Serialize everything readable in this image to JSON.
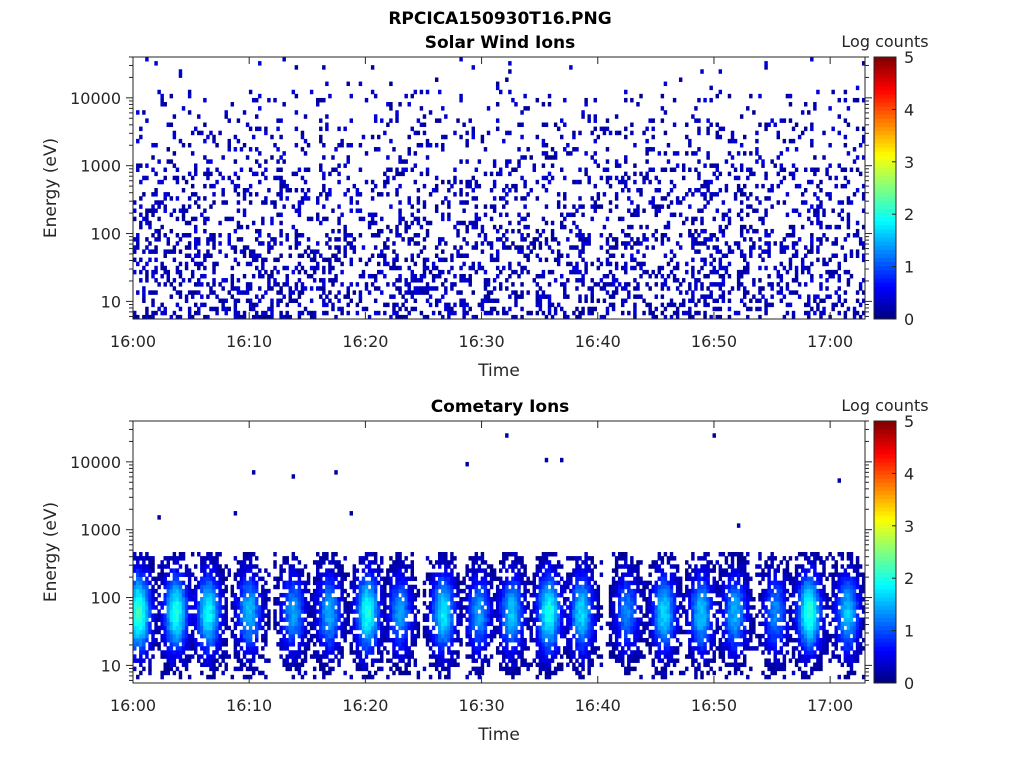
{
  "figure_title": "RPCICA150930T16.PNG",
  "chart_data": [
    {
      "type": "heatmap",
      "title": "Solar Wind Ions",
      "xlabel": "Time",
      "ylabel": "Energy (eV)",
      "yscale": "log",
      "ylim": [
        5.5,
        40000
      ],
      "y_ticks": [
        10,
        100,
        1000,
        10000
      ],
      "y_tick_labels": [
        "10",
        "100",
        "1000",
        "10000"
      ],
      "x_range_minutes": [
        0,
        63
      ],
      "x_ticks_minutes": [
        0,
        10,
        20,
        30,
        40,
        50,
        60
      ],
      "x_tick_labels": [
        "16:00",
        "16:10",
        "16:20",
        "16:30",
        "16:40",
        "16:50",
        "17:00"
      ],
      "colorbar": {
        "label": "Log counts",
        "min": 0,
        "max": 5,
        "ticks": [
          0,
          1,
          2,
          3,
          4,
          5
        ],
        "tick_labels": [
          "0",
          "1",
          "2",
          "3",
          "4",
          "5"
        ],
        "colormap": "jet"
      },
      "pattern": "sparse low counts (log counts ~0-0.5) scattered across all times from ~6 eV to ~30000 eV, densest below ~1000 eV",
      "grid": false
    },
    {
      "type": "heatmap",
      "title": "Cometary Ions",
      "xlabel": "Time",
      "ylabel": "Energy (eV)",
      "yscale": "log",
      "ylim": [
        5.5,
        40000
      ],
      "y_ticks": [
        10,
        100,
        1000,
        10000
      ],
      "y_tick_labels": [
        "10",
        "100",
        "1000",
        "10000"
      ],
      "x_range_minutes": [
        0,
        63
      ],
      "x_ticks_minutes": [
        0,
        10,
        20,
        30,
        40,
        50,
        60
      ],
      "x_tick_labels": [
        "16:00",
        "16:10",
        "16:20",
        "16:30",
        "16:40",
        "16:50",
        "17:00"
      ],
      "colorbar": {
        "label": "Log counts",
        "min": 0,
        "max": 5,
        "ticks": [
          0,
          1,
          2,
          3,
          4,
          5
        ],
        "tick_labels": [
          "0",
          "1",
          "2",
          "3",
          "4",
          "5"
        ],
        "colormap": "jet"
      },
      "bursts": [
        {
          "t_min": 0.5,
          "peak_log_counts": 2.2
        },
        {
          "t_min": 3.7,
          "peak_log_counts": 2.0
        },
        {
          "t_min": 6.5,
          "peak_log_counts": 1.9
        },
        {
          "t_min": 10.0,
          "peak_log_counts": 1.6
        },
        {
          "t_min": 13.8,
          "peak_log_counts": 1.4
        },
        {
          "t_min": 16.9,
          "peak_log_counts": 1.5
        },
        {
          "t_min": 20.2,
          "peak_log_counts": 2.0
        },
        {
          "t_min": 23.0,
          "peak_log_counts": 1.4
        },
        {
          "t_min": 26.7,
          "peak_log_counts": 1.8
        },
        {
          "t_min": 29.8,
          "peak_log_counts": 1.4
        },
        {
          "t_min": 32.6,
          "peak_log_counts": 1.6
        },
        {
          "t_min": 35.8,
          "peak_log_counts": 2.0
        },
        {
          "t_min": 38.6,
          "peak_log_counts": 1.7
        },
        {
          "t_min": 42.5,
          "peak_log_counts": 1.3
        },
        {
          "t_min": 45.7,
          "peak_log_counts": 1.7
        },
        {
          "t_min": 48.9,
          "peak_log_counts": 1.6
        },
        {
          "t_min": 51.8,
          "peak_log_counts": 1.5
        },
        {
          "t_min": 55.3,
          "peak_log_counts": 1.3
        },
        {
          "t_min": 58.2,
          "peak_log_counts": 2.1
        },
        {
          "t_min": 61.5,
          "peak_log_counts": 1.6
        }
      ],
      "burst_energy_range_eV": [
        6,
        500
      ],
      "burst_peak_energy_eV": 60,
      "isolated_high_energy_counts": [
        {
          "t_min": 32.2,
          "energy_eV": 25000
        },
        {
          "t_min": 50.0,
          "energy_eV": 25000
        },
        {
          "t_min": 35.6,
          "energy_eV": 10000
        },
        {
          "t_min": 37.0,
          "energy_eV": 11000
        },
        {
          "t_min": 28.8,
          "energy_eV": 9000
        },
        {
          "t_min": 10.3,
          "energy_eV": 7000
        },
        {
          "t_min": 13.9,
          "energy_eV": 6500
        },
        {
          "t_min": 17.5,
          "energy_eV": 7000
        },
        {
          "t_min": 2.2,
          "energy_eV": 1600
        },
        {
          "t_min": 8.9,
          "energy_eV": 1800
        },
        {
          "t_min": 18.7,
          "energy_eV": 1700
        },
        {
          "t_min": 52.0,
          "energy_eV": 1200
        },
        {
          "t_min": 60.8,
          "energy_eV": 5000
        }
      ],
      "grid": false
    }
  ]
}
